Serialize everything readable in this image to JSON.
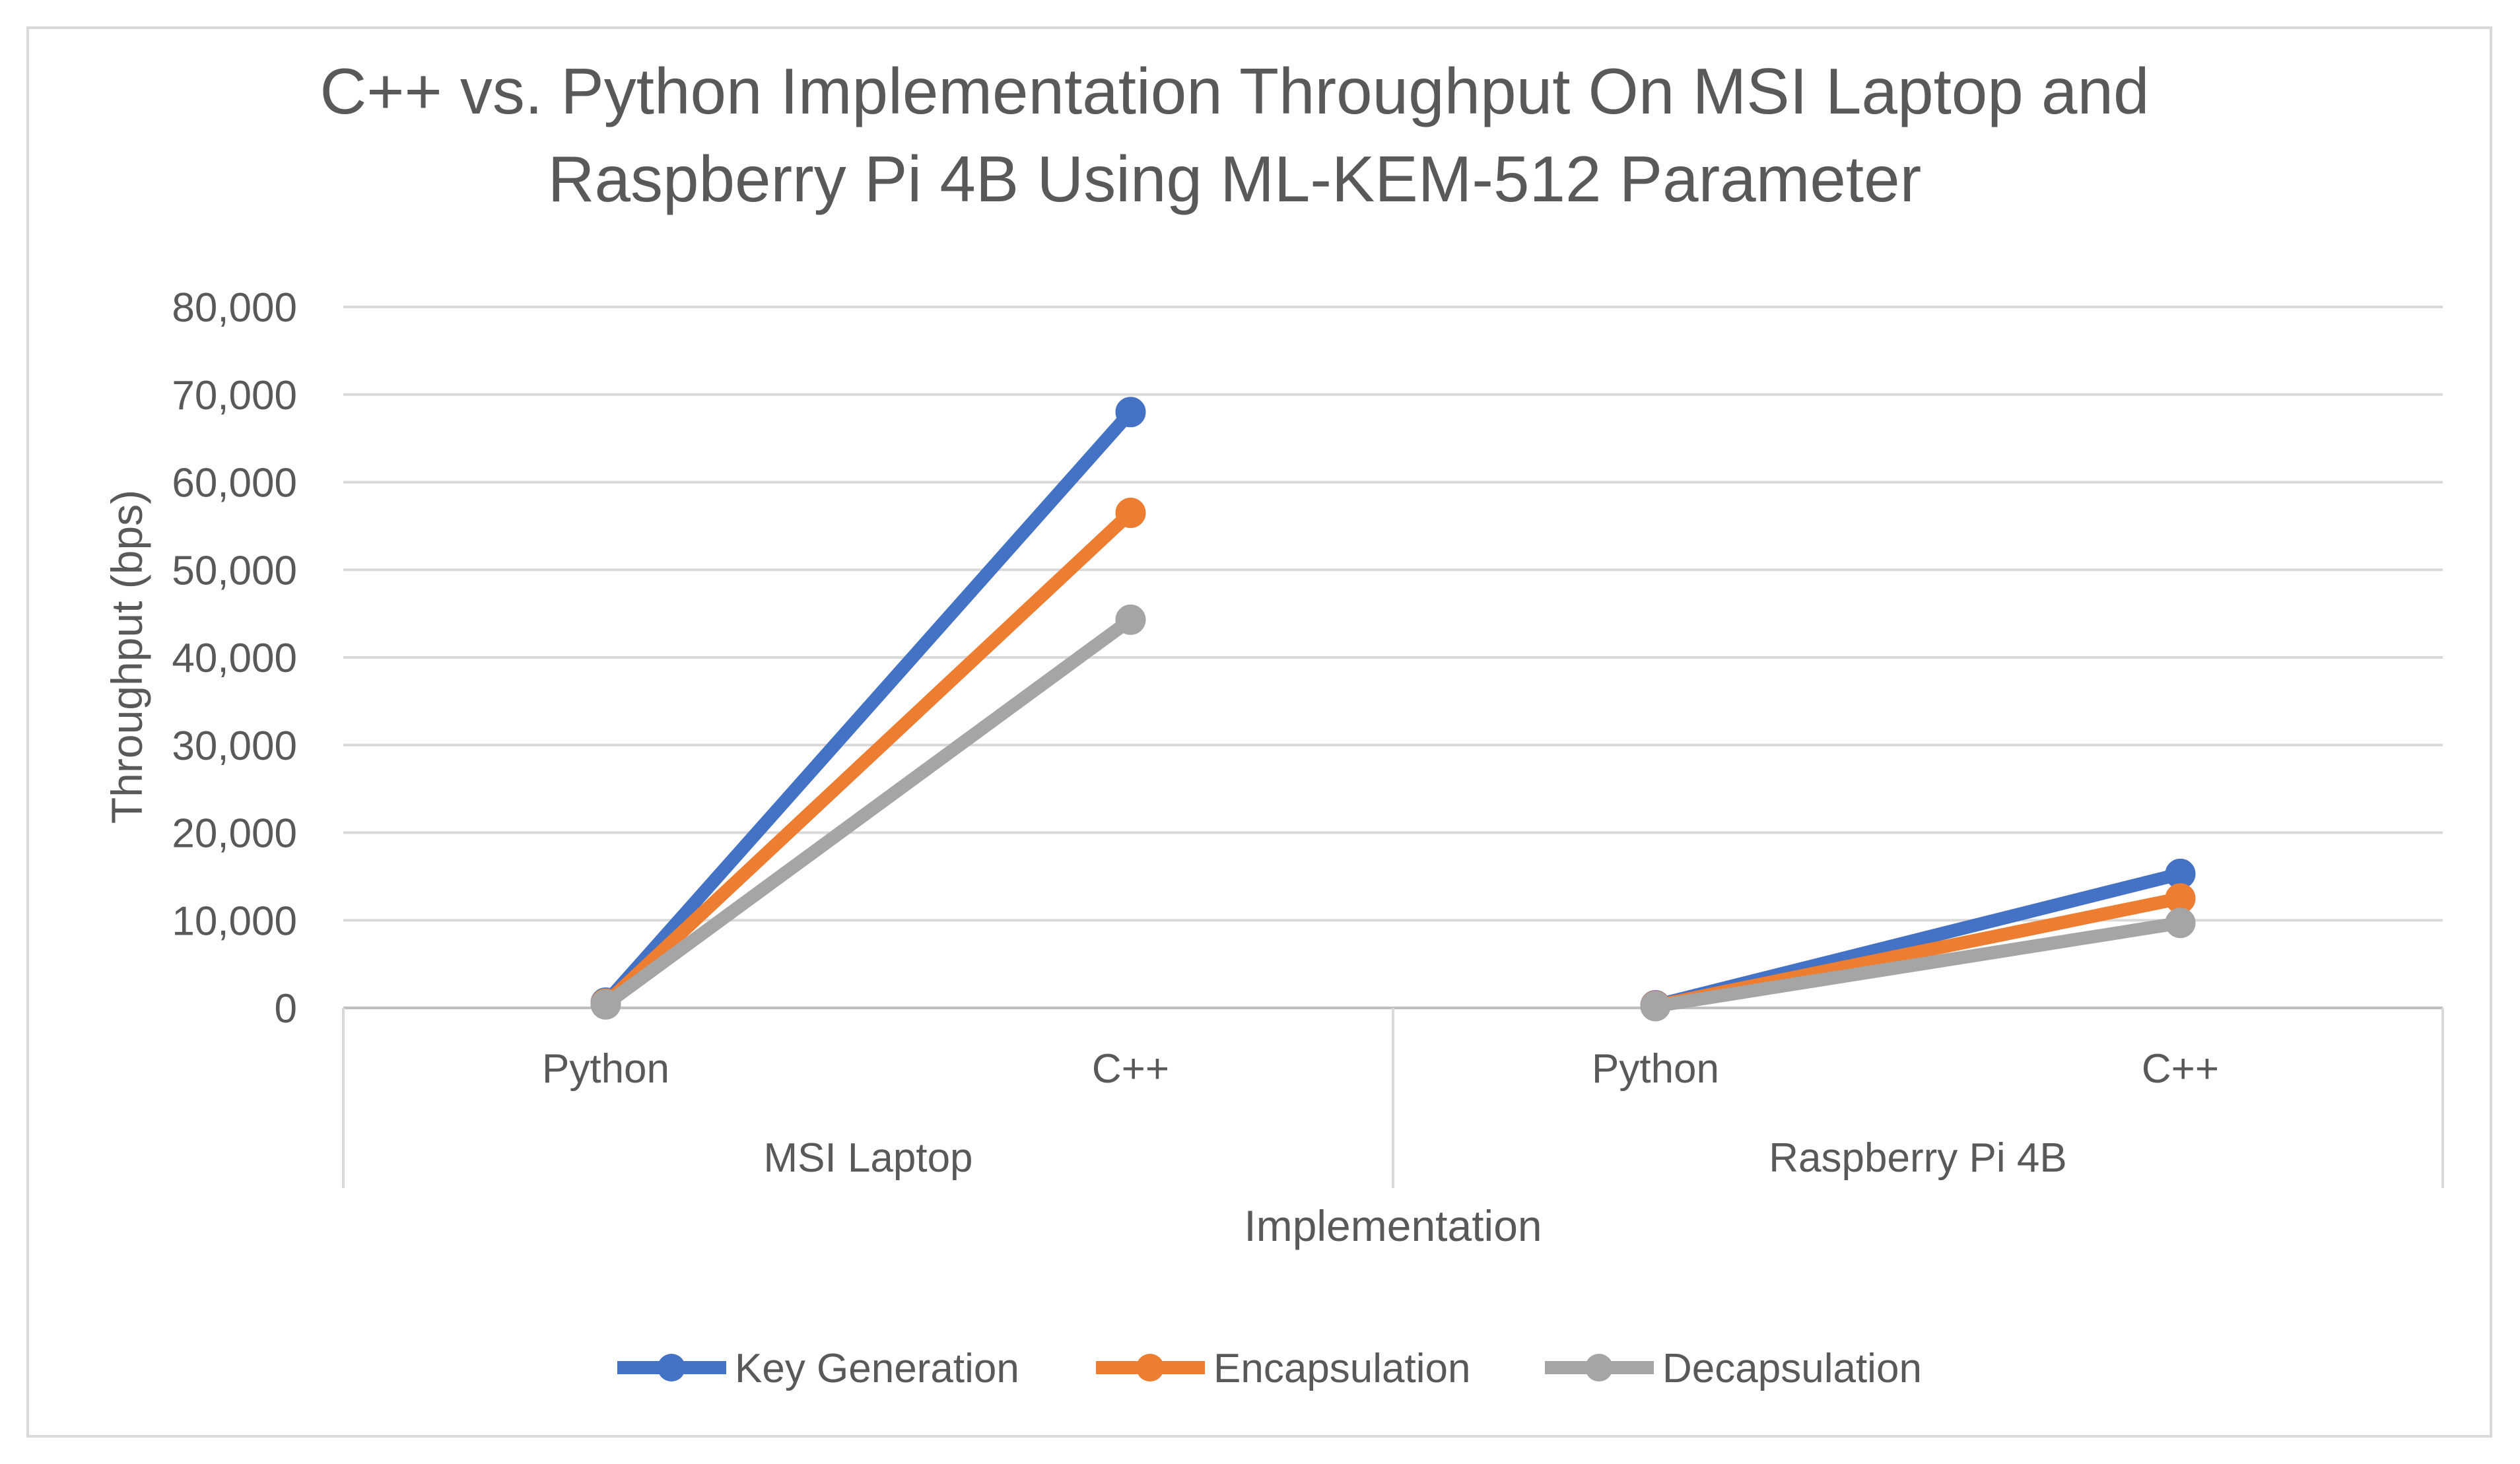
{
  "chart_data": {
    "type": "line",
    "title": "C++ vs. Python Implementation Throughput On MSI Laptop and Raspberry Pi 4B Using ML-KEM-512 Parameter",
    "title_lines": [
      "C++ vs. Python Implementation Throughput On MSI Laptop and",
      "Raspberry Pi 4B Using ML-KEM-512 Parameter"
    ],
    "xlabel": "Implementation",
    "ylabel": "Throughput (bps)",
    "ylim": [
      0,
      80000
    ],
    "yticks": [
      0,
      10000,
      20000,
      30000,
      40000,
      50000,
      60000,
      70000,
      80000
    ],
    "ytick_labels": [
      "0",
      "10,000",
      "20,000",
      "30,000",
      "40,000",
      "50,000",
      "60,000",
      "70,000",
      "80,000"
    ],
    "groups": [
      "MSI Laptop",
      "Raspberry Pi 4B"
    ],
    "categories": [
      "Python",
      "C++",
      "Python",
      "C++"
    ],
    "grid": true,
    "legend_position": "bottom",
    "series": [
      {
        "name": "Key Generation",
        "color": "#4472c4",
        "values": [
          600,
          68000,
          300,
          15300
        ]
      },
      {
        "name": "Encapsulation",
        "color": "#ed7d31",
        "values": [
          500,
          56500,
          250,
          12500
        ]
      },
      {
        "name": "Decapsulation",
        "color": "#a5a5a5",
        "values": [
          400,
          44300,
          200,
          9700
        ]
      }
    ]
  }
}
